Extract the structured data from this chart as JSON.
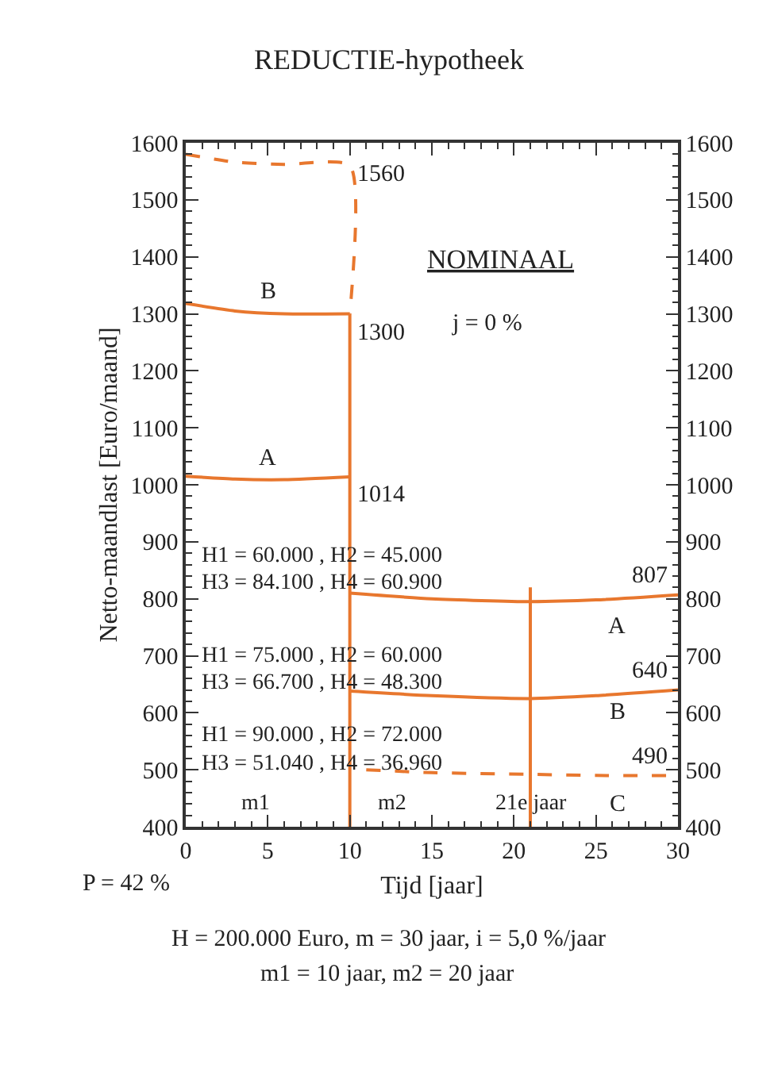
{
  "chart_data": {
    "type": "line",
    "title": "REDUCTIE-hypotheek",
    "xlabel": "Tijd [jaar]",
    "ylabel": "Netto-maandlast [Euro/maand]",
    "xlim": [
      0,
      30
    ],
    "xticks": [
      0,
      5,
      10,
      15,
      20,
      25,
      30
    ],
    "ylim": [
      400,
      1600
    ],
    "yticks": [
      400,
      500,
      600,
      700,
      800,
      900,
      1000,
      1100,
      1200,
      1300,
      1400,
      1500,
      1600
    ],
    "y2lim": [
      400,
      1600
    ],
    "y2ticks": [
      400,
      500,
      600,
      700,
      800,
      900,
      1000,
      1100,
      1200,
      1300,
      1400,
      1500,
      1600
    ],
    "line_style": "solid",
    "series": [
      {
        "color": "#e8772e",
        "line_style": "dashed",
        "x": [
          0,
          3,
          6,
          10,
          10
        ],
        "values": [
          1580,
          1566,
          1562,
          1560,
          1300
        ]
      },
      {
        "color": "#e8772e",
        "x": [
          0,
          3,
          6,
          10
        ],
        "values": [
          1318,
          1305,
          1300,
          1300
        ]
      },
      {
        "color": "#e8772e",
        "x": [
          0,
          3,
          6,
          10
        ],
        "values": [
          1015,
          1010,
          1009,
          1014
        ]
      },
      {
        "color": "#e8772e",
        "x": [
          10,
          10
        ],
        "values": [
          1300,
          400
        ]
      },
      {
        "color": "#e8772e",
        "x": [
          10,
          15,
          21,
          25,
          30
        ],
        "values": [
          810,
          800,
          795,
          798,
          807
        ]
      },
      {
        "color": "#e8772e",
        "x": [
          10,
          15,
          21,
          25,
          30
        ],
        "values": [
          638,
          630,
          625,
          630,
          640
        ]
      },
      {
        "color": "#e8772e",
        "line_style": "dashed",
        "x": [
          11,
          15,
          21,
          25,
          30
        ],
        "values": [
          500,
          495,
          492,
          490,
          490
        ]
      },
      {
        "color": "#e8772e",
        "x": [
          21,
          21
        ],
        "values": [
          820,
          400
        ]
      }
    ],
    "annotations": [
      {
        "text": "1560",
        "x": 10,
        "y": 1560
      },
      {
        "text": "1300",
        "x": 10,
        "y": 1300
      },
      {
        "text": "1014",
        "x": 10,
        "y": 1014
      },
      {
        "text": "807",
        "x": 30,
        "y": 807
      },
      {
        "text": "640",
        "x": 30,
        "y": 640
      },
      {
        "text": "490",
        "x": 30,
        "y": 490
      },
      "B",
      "A",
      "A",
      "B",
      "C",
      "m1",
      "m2",
      {
        "text": "21e jaar",
        "x": 21,
        "y": 440
      },
      "H1 = 60.000 , H2 = 45.000",
      "H3 = 84.100 , H4 = 60.900",
      "H1 = 75.000 , H2 = 60.000",
      "H3 = 66.700 , H4 = 48.300",
      "H1 = 90.000 , H2 = 72.000",
      "H3 = 51.040 , H4 = 36.960",
      "NOMINAAL",
      "j = 0 %",
      "P = 42 %",
      "H = 200.000 Euro, m = 30 jaar, i = 5,0 %/jaar",
      "m1 = 10 jaar, m2 = 20 jaar"
    ]
  }
}
